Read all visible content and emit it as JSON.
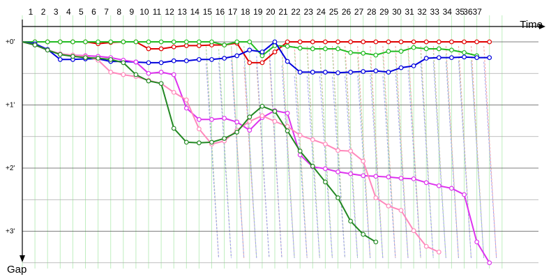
{
  "chart_data": {
    "type": "line",
    "title": "",
    "xlabel": "Time",
    "ylabel": "Gap",
    "x_tick_labels": [
      "1",
      "2",
      "3",
      "4",
      "5",
      "6",
      "7",
      "8",
      "9",
      "10",
      "11",
      "12",
      "13",
      "14",
      "15",
      "16",
      "17",
      "18",
      "19",
      "20",
      "21",
      "22",
      "23",
      "24",
      "25",
      "26",
      "27",
      "28",
      "29",
      "30",
      "31",
      "32",
      "33",
      "34",
      "35",
      "3637"
    ],
    "y_tick_labels": [
      "+0'",
      "+1'",
      "+2'",
      "+3'"
    ],
    "y_ticks": [
      0,
      1,
      2,
      3
    ],
    "ylim": [
      -0.3,
      3.5
    ],
    "y_inverted": true,
    "grid": true,
    "legend": "none",
    "series": [
      {
        "color": "#e00000",
        "lap_starts": [
          0,
          0,
          0,
          0,
          0,
          0,
          0,
          0,
          0,
          0,
          0,
          0,
          0,
          0,
          0,
          0,
          0,
          0.01,
          0.01,
          0.01,
          0.01,
          0.01,
          0.01,
          0.01,
          0.01,
          0.01,
          0.01,
          0.01,
          0.01,
          0.01,
          0.01,
          0.01,
          0.01,
          0.01,
          0.01,
          0.01,
          0.01,
          0.01
        ],
        "values": [
          0,
          0,
          0,
          0,
          0,
          0.03,
          0.01,
          0,
          0,
          0.11,
          0.11,
          0.08,
          0.06,
          0.06,
          0.05,
          0.05,
          0.02,
          0.33,
          0.33,
          0.16,
          0,
          0,
          0,
          0,
          0,
          0,
          0,
          0,
          0,
          0,
          0,
          0,
          0,
          0,
          0,
          0,
          0
        ]
      },
      {
        "color": "#22bb22",
        "lap_starts": [
          0,
          0,
          0,
          0,
          0,
          0,
          0,
          0,
          0,
          0,
          0,
          0,
          0,
          0,
          0,
          0,
          0,
          0,
          0,
          0.01,
          0.01,
          0.01,
          0.01,
          0.01,
          0.01,
          0.01,
          0.01,
          0.01,
          0.01,
          0.01,
          0.01,
          0.01,
          0.01,
          0.01,
          0.01,
          0.01,
          0.01
        ],
        "values": [
          0,
          0,
          0,
          0,
          0,
          0,
          0,
          0,
          0,
          0,
          0,
          0,
          0,
          0,
          0,
          0.05,
          0,
          0,
          0.22,
          0.06,
          0.07,
          0.1,
          0.11,
          0.11,
          0.11,
          0.17,
          0.18,
          0.21,
          0.15,
          0.15,
          0.09,
          0.11,
          0.11,
          0.13,
          0.17,
          0.22
        ]
      },
      {
        "color": "#0000dd",
        "lap_starts": [
          0,
          0,
          0,
          0,
          0,
          0,
          0,
          0,
          0,
          0,
          0,
          0,
          0,
          0,
          0,
          0,
          0,
          0,
          0,
          0,
          0.01,
          0.01,
          0.01,
          0.01,
          0.01,
          0.01,
          0.01,
          0.01,
          0.01,
          0.01,
          0.01,
          0.01,
          0.01,
          0.01,
          0.01,
          0.01,
          0.01,
          0.01
        ],
        "values": [
          0.03,
          0.12,
          0.28,
          0.28,
          0.27,
          0.27,
          0.31,
          0.31,
          0.32,
          0.33,
          0.33,
          0.3,
          0.3,
          0.28,
          0.28,
          0.26,
          0.22,
          0.13,
          0.16,
          0,
          0.31,
          0.48,
          0.48,
          0.48,
          0.49,
          0.48,
          0.47,
          0.46,
          0.48,
          0.41,
          0.38,
          0.26,
          0.25,
          0.25,
          0.24,
          0.25,
          0.25
        ]
      },
      {
        "color": "#dd33ee",
        "lap_starts": [
          0,
          0,
          0,
          0,
          0,
          0,
          0,
          0,
          0,
          0,
          0,
          0,
          0,
          0,
          0,
          0,
          0,
          0,
          0,
          0,
          0,
          0,
          0,
          0,
          0,
          0,
          0,
          0,
          0,
          0,
          0,
          0,
          0,
          0,
          0,
          0,
          0,
          0
        ],
        "values": [
          0.05,
          0.13,
          0.19,
          0.21,
          0.22,
          0.23,
          0.25,
          0.29,
          0.32,
          0.5,
          0.48,
          0.52,
          1.05,
          1.23,
          1.23,
          1.21,
          1.27,
          1.4,
          1.2,
          1.09,
          1.13,
          1.79,
          1.98,
          2.01,
          2.06,
          2.09,
          2.12,
          2.13,
          2.14,
          2.16,
          2.17,
          2.23,
          2.28,
          2.32,
          2.42,
          3.17,
          3.5
        ]
      },
      {
        "color": "#ff88bb",
        "lap_starts": [
          0,
          0,
          0,
          0,
          0,
          0,
          0,
          0,
          0,
          0,
          0,
          0,
          0,
          0,
          0,
          0,
          0,
          0,
          0,
          0,
          0,
          0,
          0,
          0,
          0,
          0,
          0,
          0,
          0,
          0,
          0,
          0,
          0,
          0,
          0,
          0,
          0,
          0
        ],
        "values": [
          0.05,
          0.13,
          0.19,
          0.21,
          0.23,
          0.29,
          0.48,
          0.52,
          0.55,
          0.61,
          0.66,
          0.8,
          0.92,
          1.38,
          1.62,
          1.57,
          1.4,
          1.26,
          1.17,
          1.26,
          1.34,
          1.48,
          1.55,
          1.62,
          1.72,
          1.73,
          1.89,
          2.47,
          2.6,
          2.67,
          2.99,
          3.24,
          3.33
        ]
      },
      {
        "color": "#228822",
        "lap_starts": [
          0,
          0,
          0,
          0,
          0,
          0,
          0,
          0,
          0,
          0,
          0,
          0,
          0,
          0,
          0,
          0,
          0,
          0,
          0,
          0,
          0,
          0,
          0,
          0,
          0,
          0,
          0,
          0,
          0,
          0,
          0,
          0,
          0,
          0,
          0,
          0,
          0,
          0
        ],
        "values": [
          0.05,
          0.13,
          0.2,
          0.23,
          0.25,
          0.26,
          0.28,
          0.33,
          0.52,
          0.62,
          0.66,
          1.37,
          1.59,
          1.6,
          1.59,
          1.53,
          1.43,
          1.19,
          1.02,
          1.1,
          1.41,
          1.73,
          1.97,
          2.22,
          2.47,
          2.84,
          3.05,
          3.17
        ]
      }
    ]
  }
}
